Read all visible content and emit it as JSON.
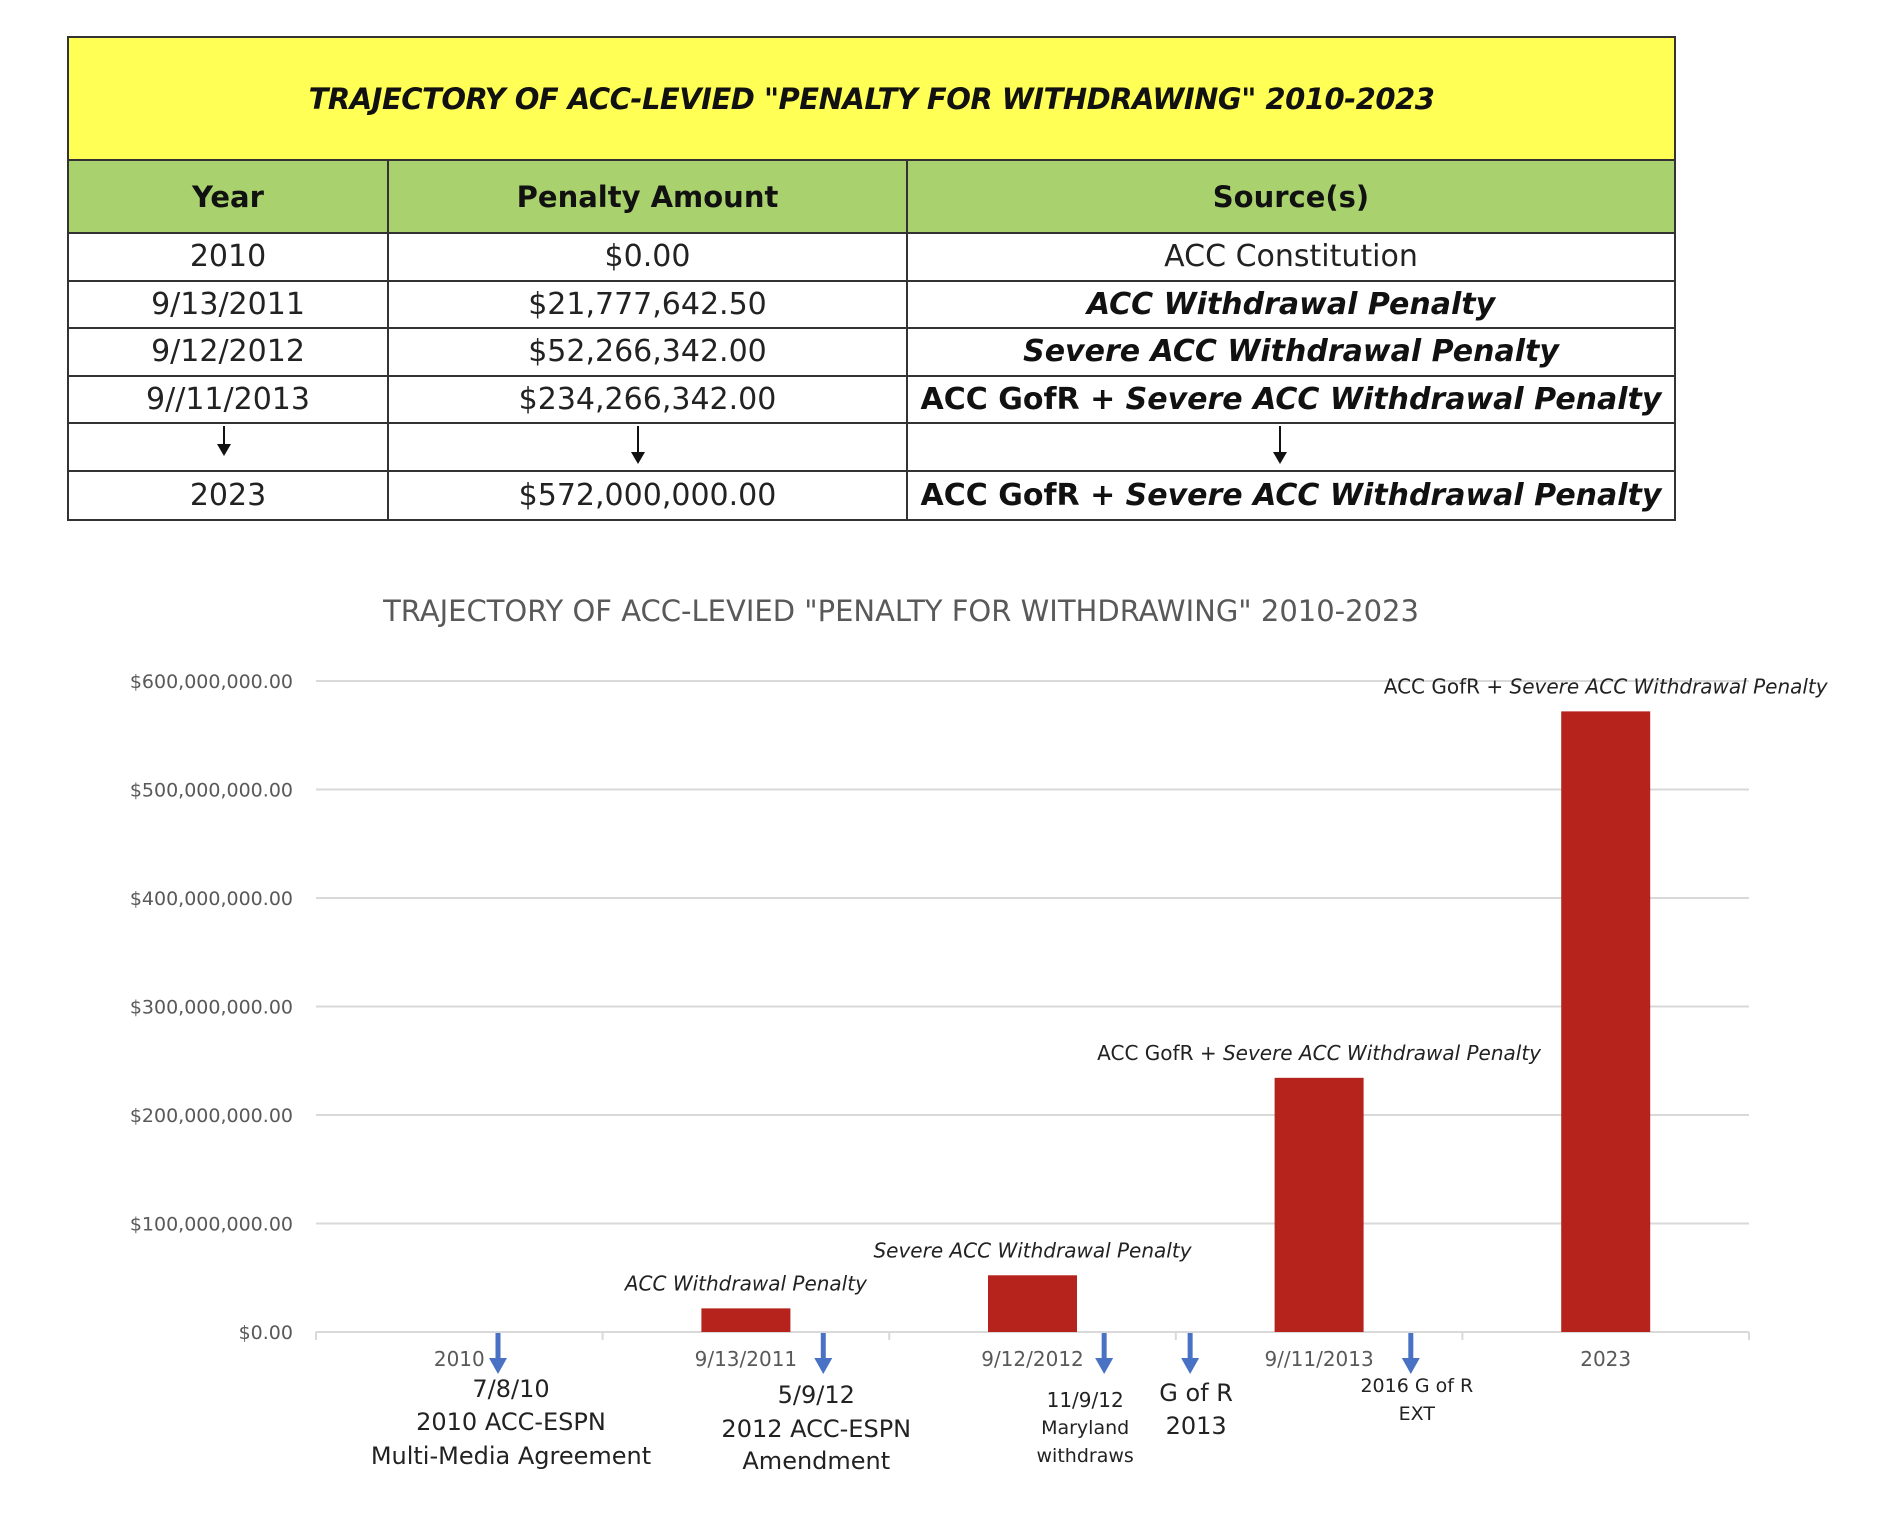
{
  "table": {
    "title": "TRAJECTORY OF ACC-LEVIED \"PENALTY FOR WITHDRAWING\" 2010-2023",
    "headers": [
      "Year",
      "Penalty Amount",
      "Source(s)"
    ],
    "rows": [
      {
        "year": "2010",
        "amount": "$0.00",
        "source_plain": "ACC Constitution",
        "source_italic": ""
      },
      {
        "year": "9/13/2011",
        "amount": "$21,777,642.50",
        "source_plain": "",
        "source_italic": "ACC Withdrawal Penalty"
      },
      {
        "year": "9/12/2012",
        "amount": "$52,266,342.00",
        "source_plain": "",
        "source_italic": "Severe ACC Withdrawal Penalty"
      },
      {
        "year": "9//11/2013",
        "amount": "$234,266,342.00",
        "source_plain": "ACC GofR + ",
        "source_italic": "Severe ACC Withdrawal Penalty"
      },
      {
        "year": "2023",
        "amount": "$572,000,000.00",
        "source_plain": "ACC GofR + ",
        "source_italic": "Severe ACC Withdrawal Penalty"
      }
    ]
  },
  "colors": {
    "title_bg": "#ffff55",
    "header_bg": "#a9d16d",
    "bar": "#b5231c",
    "event_arrow": "#4a72c4",
    "grid": "#d9d9d9",
    "axis_text": "#595959"
  },
  "chart_data": {
    "type": "bar",
    "title": "TRAJECTORY OF ACC-LEVIED \"PENALTY FOR WITHDRAWING\" 2010-2023",
    "xlabel": "",
    "ylabel": "",
    "ylim": [
      0,
      600000000
    ],
    "yticks": [
      0,
      100000000,
      200000000,
      300000000,
      400000000,
      500000000,
      600000000
    ],
    "ytick_labels": [
      "$0.00",
      "$100,000,000.00",
      "$200,000,000.00",
      "$300,000,000.00",
      "$400,000,000.00",
      "$500,000,000.00",
      "$600,000,000.00"
    ],
    "grid": true,
    "categories": [
      "2010",
      "9/13/2011",
      "9/12/2012",
      "9//11/2013",
      "2023"
    ],
    "values": [
      0,
      21777642.5,
      52266342,
      234266342,
      572000000
    ],
    "bar_labels": [
      {
        "plain": "",
        "italic": ""
      },
      {
        "plain": "",
        "italic": "ACC Withdrawal Penalty"
      },
      {
        "plain": "",
        "italic": "Severe ACC Withdrawal Penalty"
      },
      {
        "plain": "ACC GofR + ",
        "italic": "Severe ACC Withdrawal Penalty"
      },
      {
        "plain": "ACC GofR + ",
        "italic": "Severe ACC Withdrawal Penalty"
      }
    ],
    "events": [
      {
        "after_category": 0,
        "offset": 0.135,
        "lines": [
          "7/8/10",
          "2010 ACC-ESPN",
          "Multi-Media Agreement"
        ]
      },
      {
        "after_category": 1,
        "offset": 0.27,
        "lines": [
          "5/9/12",
          "2012 ACC-ESPN",
          "Amendment"
        ]
      },
      {
        "after_category": 2,
        "offset": 0.25,
        "lines": [
          "11/9/12",
          "Maryland",
          "withdraws"
        ]
      },
      {
        "after_category": 2,
        "offset": 0.55,
        "lines": [
          "G of R",
          "2013"
        ]
      },
      {
        "after_category": 3,
        "offset": 0.32,
        "lines": [
          "2016 G of R",
          "EXT"
        ]
      }
    ]
  }
}
